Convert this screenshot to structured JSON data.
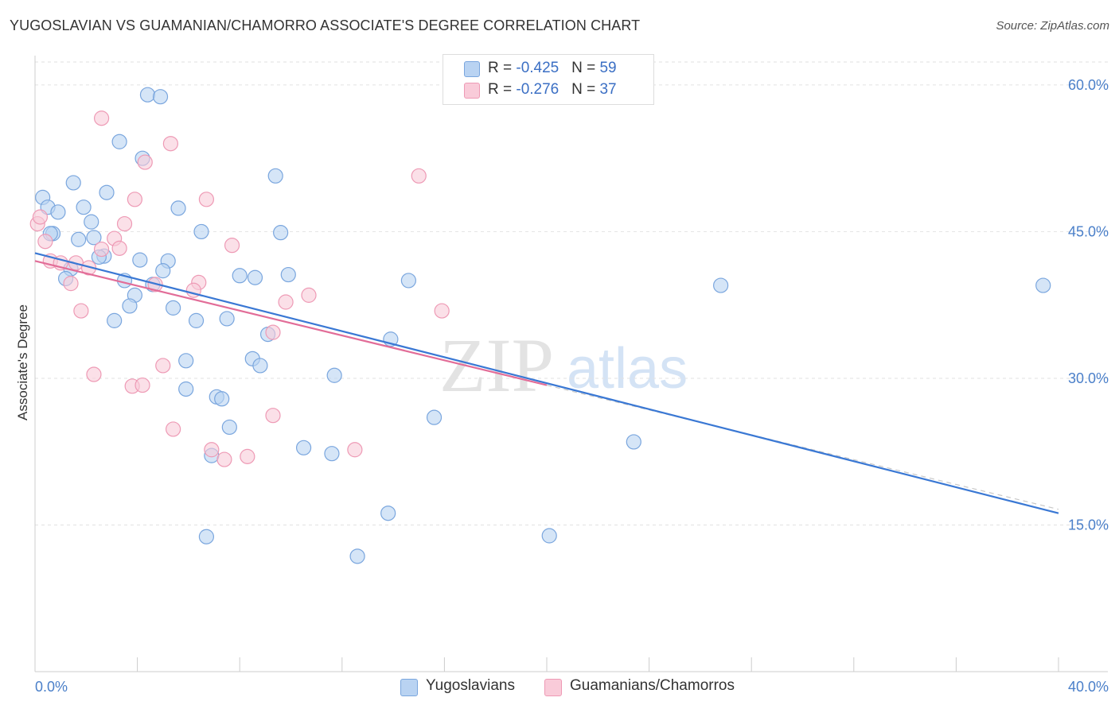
{
  "header": {
    "title": "YUGOSLAVIAN VS GUAMANIAN/CHAMORRO ASSOCIATE'S DEGREE CORRELATION CHART",
    "source": "Source: ZipAtlas.com"
  },
  "legend": {
    "rows": [
      {
        "r_label": "R = ",
        "r_value": "-0.425",
        "n_label": "N = ",
        "n_value": "59"
      },
      {
        "r_label": "R = ",
        "r_value": "-0.276",
        "n_label": "N = ",
        "n_value": "37"
      }
    ]
  },
  "bottom_legend": {
    "series1": "Yugoslavians",
    "series2": "Guamanians/Chamorros"
  },
  "watermark": {
    "part1": "ZIP",
    "part2": "atlas"
  },
  "colors": {
    "blue_fill": "#b9d3f2",
    "blue_stroke": "#7aa6de",
    "blue_line": "#3a78d4",
    "pink_fill": "#f9cbd9",
    "pink_stroke": "#ee9ab5",
    "pink_line": "#e26d98",
    "grid": "#e2e2e2",
    "tick_text": "#4a7fc9"
  },
  "chart_data": {
    "type": "scatter",
    "title": "YUGOSLAVIAN VS GUAMANIAN/CHAMORRO ASSOCIATE'S DEGREE CORRELATION CHART",
    "xlabel": "",
    "ylabel": "Associate's Degree",
    "xlim": [
      0,
      40
    ],
    "ylim": [
      0,
      63
    ],
    "x_tick_labels": [
      "0.0%",
      "40.0%"
    ],
    "y_ticks": [
      15,
      30,
      45,
      60
    ],
    "y_tick_labels": [
      "15.0%",
      "30.0%",
      "45.0%",
      "60.0%"
    ],
    "grid": true,
    "series": [
      {
        "name": "Yugoslavians",
        "R": -0.425,
        "N": 59,
        "trend": {
          "x0": 0,
          "y0": 42.8,
          "x1": 40,
          "y1": 16.2
        },
        "points": [
          [
            0.3,
            48.5
          ],
          [
            0.5,
            47.5
          ],
          [
            0.9,
            47.0
          ],
          [
            0.7,
            44.8
          ],
          [
            1.5,
            50.0
          ],
          [
            1.9,
            47.5
          ],
          [
            2.2,
            46.0
          ],
          [
            2.3,
            44.4
          ],
          [
            1.7,
            44.2
          ],
          [
            2.7,
            42.5
          ],
          [
            2.5,
            42.4
          ],
          [
            1.4,
            41.2
          ],
          [
            1.2,
            40.2
          ],
          [
            4.4,
            59.0
          ],
          [
            4.9,
            58.8
          ],
          [
            3.3,
            54.2
          ],
          [
            4.2,
            52.5
          ],
          [
            2.8,
            49.0
          ],
          [
            5.6,
            47.4
          ],
          [
            6.5,
            45.0
          ],
          [
            9.4,
            50.7
          ],
          [
            9.6,
            44.9
          ],
          [
            4.1,
            42.1
          ],
          [
            5.2,
            42.0
          ],
          [
            5.0,
            41.0
          ],
          [
            3.5,
            40.0
          ],
          [
            4.6,
            39.6
          ],
          [
            8.0,
            40.5
          ],
          [
            8.6,
            40.3
          ],
          [
            9.9,
            40.6
          ],
          [
            3.9,
            38.5
          ],
          [
            3.7,
            37.4
          ],
          [
            5.4,
            37.2
          ],
          [
            3.1,
            35.9
          ],
          [
            6.3,
            35.9
          ],
          [
            7.5,
            36.1
          ],
          [
            9.1,
            34.5
          ],
          [
            13.9,
            34.0
          ],
          [
            14.6,
            40.0
          ],
          [
            26.8,
            39.5
          ],
          [
            39.4,
            39.5
          ],
          [
            5.9,
            31.8
          ],
          [
            8.5,
            32.0
          ],
          [
            8.8,
            31.3
          ],
          [
            11.7,
            30.3
          ],
          [
            5.9,
            28.9
          ],
          [
            7.1,
            28.1
          ],
          [
            7.3,
            27.9
          ],
          [
            7.6,
            25.0
          ],
          [
            15.6,
            26.0
          ],
          [
            10.5,
            22.9
          ],
          [
            11.6,
            22.3
          ],
          [
            6.9,
            22.1
          ],
          [
            23.4,
            23.5
          ],
          [
            13.8,
            16.2
          ],
          [
            6.7,
            13.8
          ],
          [
            20.1,
            13.9
          ],
          [
            12.6,
            11.8
          ],
          [
            0.6,
            44.8
          ]
        ]
      },
      {
        "name": "Guamanians/Chamorros",
        "R": -0.276,
        "N": 37,
        "trend": {
          "x0": 0,
          "y0": 42.0,
          "x1": 20.0,
          "y1": 29.3
        },
        "points": [
          [
            0.1,
            45.8
          ],
          [
            0.4,
            44.0
          ],
          [
            0.6,
            42.0
          ],
          [
            1.0,
            41.8
          ],
          [
            1.6,
            41.8
          ],
          [
            2.1,
            41.3
          ],
          [
            1.4,
            39.7
          ],
          [
            2.6,
            43.2
          ],
          [
            3.1,
            44.3
          ],
          [
            3.3,
            43.3
          ],
          [
            3.5,
            45.8
          ],
          [
            3.9,
            48.3
          ],
          [
            2.6,
            56.6
          ],
          [
            4.3,
            52.1
          ],
          [
            5.3,
            54.0
          ],
          [
            6.7,
            48.3
          ],
          [
            7.7,
            43.6
          ],
          [
            6.4,
            39.8
          ],
          [
            6.2,
            39.0
          ],
          [
            4.7,
            39.6
          ],
          [
            9.8,
            37.8
          ],
          [
            10.7,
            38.5
          ],
          [
            9.3,
            34.7
          ],
          [
            15.9,
            36.9
          ],
          [
            15.0,
            50.7
          ],
          [
            1.8,
            36.9
          ],
          [
            2.3,
            30.4
          ],
          [
            5.0,
            31.3
          ],
          [
            3.8,
            29.2
          ],
          [
            4.2,
            29.3
          ],
          [
            5.4,
            24.8
          ],
          [
            9.3,
            26.2
          ],
          [
            6.9,
            22.7
          ],
          [
            7.4,
            21.7
          ],
          [
            8.3,
            22.0
          ],
          [
            12.5,
            22.7
          ],
          [
            0.2,
            46.5
          ]
        ]
      }
    ]
  }
}
